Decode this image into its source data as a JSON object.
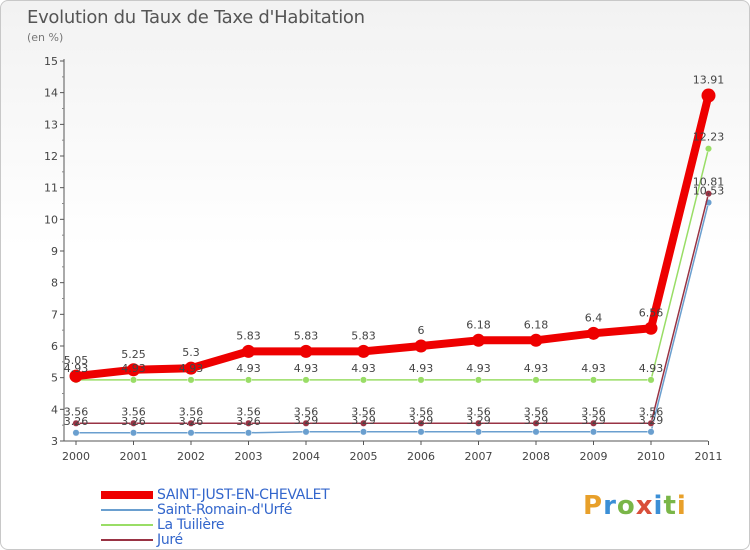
{
  "header": {
    "title": "Evolution du Taux de Taxe d'Habitation",
    "subtitle": "(en %)"
  },
  "logo": {
    "text": "Proxiti",
    "colors": [
      "#e8a02a",
      "#3b8fd6",
      "#7ab648",
      "#d94f3a",
      "#3b8fd6",
      "#7ab648",
      "#e8a02a"
    ]
  },
  "chart_data": {
    "type": "line",
    "categories": [
      "2000",
      "2001",
      "2002",
      "2003",
      "2004",
      "2005",
      "2006",
      "2007",
      "2008",
      "2009",
      "2010",
      "2011"
    ],
    "y_ticks": [
      "3",
      "4",
      "5",
      "6",
      "7",
      "8",
      "9",
      "10",
      "11",
      "12",
      "13",
      "14",
      "15"
    ],
    "ylim": [
      3,
      15
    ],
    "grid": false,
    "legend_position": "bottom-left",
    "series": [
      {
        "name": "SAINT-JUST-EN-CHEVALET",
        "color": "#ee0000",
        "bold": true,
        "values": [
          5.05,
          5.25,
          5.3,
          5.83,
          5.83,
          5.83,
          6,
          6.18,
          6.18,
          6.4,
          6.56,
          13.91
        ],
        "labels": [
          "5.05",
          "5.25",
          "5.3",
          "5.83",
          "5.83",
          "5.83",
          "6",
          "6.18",
          "6.18",
          "6.4",
          "6.56",
          "13.91"
        ]
      },
      {
        "name": "Saint-Romain-d'Urfé",
        "color": "#6a9fcf",
        "bold": false,
        "values": [
          3.26,
          3.26,
          3.26,
          3.26,
          3.29,
          3.29,
          3.29,
          3.29,
          3.29,
          3.29,
          3.29,
          10.53
        ],
        "labels": [
          "3.26",
          "3.26",
          "3.26",
          "3.26",
          "3.29",
          "3.29",
          "3.29",
          "3.29",
          "3.29",
          "3.29",
          "3.29",
          "10.53"
        ]
      },
      {
        "name": "La Tuilière",
        "color": "#99dd66",
        "bold": false,
        "values": [
          4.93,
          4.93,
          4.93,
          4.93,
          4.93,
          4.93,
          4.93,
          4.93,
          4.93,
          4.93,
          4.93,
          12.23
        ],
        "labels": [
          "4.93",
          "4.93",
          "4.93",
          "4.93",
          "4.93",
          "4.93",
          "4.93",
          "4.93",
          "4.93",
          "4.93",
          "4.93",
          "12.23"
        ]
      },
      {
        "name": "Juré",
        "color": "#993344",
        "bold": false,
        "values": [
          3.56,
          3.56,
          3.56,
          3.56,
          3.56,
          3.56,
          3.56,
          3.56,
          3.56,
          3.56,
          3.56,
          10.81
        ],
        "labels": [
          "3.56",
          "3.56",
          "3.56",
          "3.56",
          "3.56",
          "3.56",
          "3.56",
          "3.56",
          "3.56",
          "3.56",
          "3.56",
          "10.81"
        ]
      }
    ]
  }
}
